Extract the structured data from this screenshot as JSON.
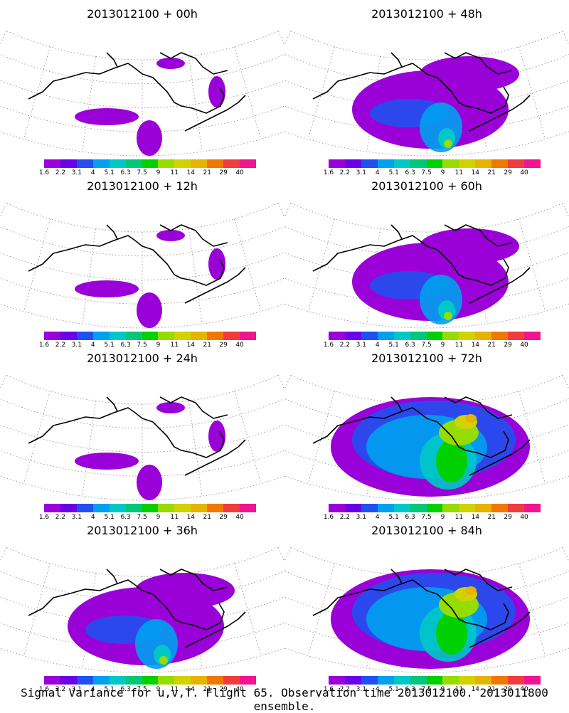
{
  "caption": "Signal Variance for u,v,T. Flight 65. Observation time 2013012100. 2013011800 ensemble.",
  "colorbar": {
    "ticks": [
      "1.6",
      "2.2",
      "3.1",
      "4",
      "5.1",
      "6.3",
      "7.5",
      "9",
      "11",
      "14",
      "21",
      "29",
      "40"
    ],
    "colors": [
      "#9a00d8",
      "#6a00e8",
      "#2050f0",
      "#00a0f0",
      "#00c8c8",
      "#00c878",
      "#00d000",
      "#96dc00",
      "#d2d200",
      "#e6b400",
      "#f07800",
      "#f03c3c",
      "#f01490"
    ]
  },
  "panels": [
    {
      "title": "2013012100 + 00h",
      "coverage": "sparse"
    },
    {
      "title": "2013012100 + 48h",
      "coverage": "moderate"
    },
    {
      "title": "2013012100 + 12h",
      "coverage": "sparse"
    },
    {
      "title": "2013012100 + 60h",
      "coverage": "moderate"
    },
    {
      "title": "2013012100 + 24h",
      "coverage": "sparse"
    },
    {
      "title": "2013012100 + 72h",
      "coverage": "broad"
    },
    {
      "title": "2013012100 + 36h",
      "coverage": "moderate-low"
    },
    {
      "title": "2013012100 + 84h",
      "coverage": "broad"
    }
  ]
}
